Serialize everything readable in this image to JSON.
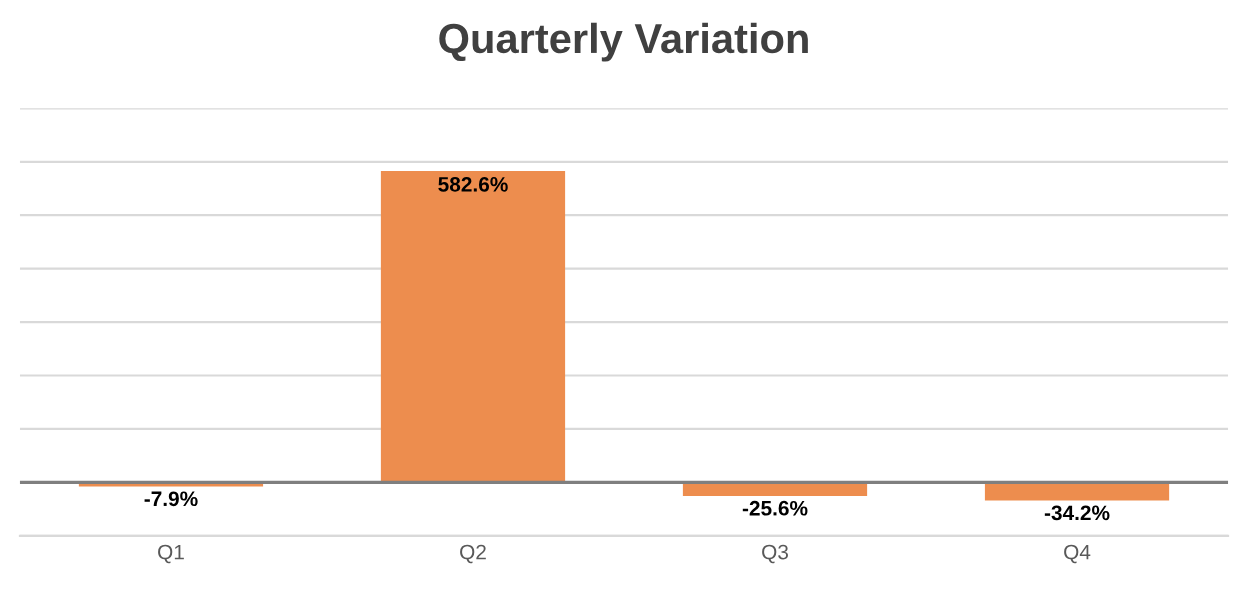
{
  "chart_data": {
    "type": "bar",
    "title": "Quarterly Variation",
    "categories": [
      "Q1",
      "Q2",
      "Q3",
      "Q4"
    ],
    "values": [
      -7.9,
      582.6,
      -25.6,
      -34.2
    ],
    "value_labels": [
      "-7.9%",
      "582.6%",
      "-25.6%",
      "-34.2%"
    ],
    "color": "#ed8d4e",
    "ylim": [
      -100,
      700
    ],
    "yticks": [
      {
        "value": -100,
        "label": null
      },
      {
        "value": 0,
        "label": null
      },
      {
        "value": 100,
        "label": null
      },
      {
        "value": 200,
        "label": null
      },
      {
        "value": 300,
        "label": null
      },
      {
        "value": 400,
        "label": null
      },
      {
        "value": 500,
        "label": null
      },
      {
        "value": 600,
        "label": null
      },
      {
        "value": 700,
        "label": null
      }
    ],
    "tick_labels": "x",
    "grid": "y"
  }
}
